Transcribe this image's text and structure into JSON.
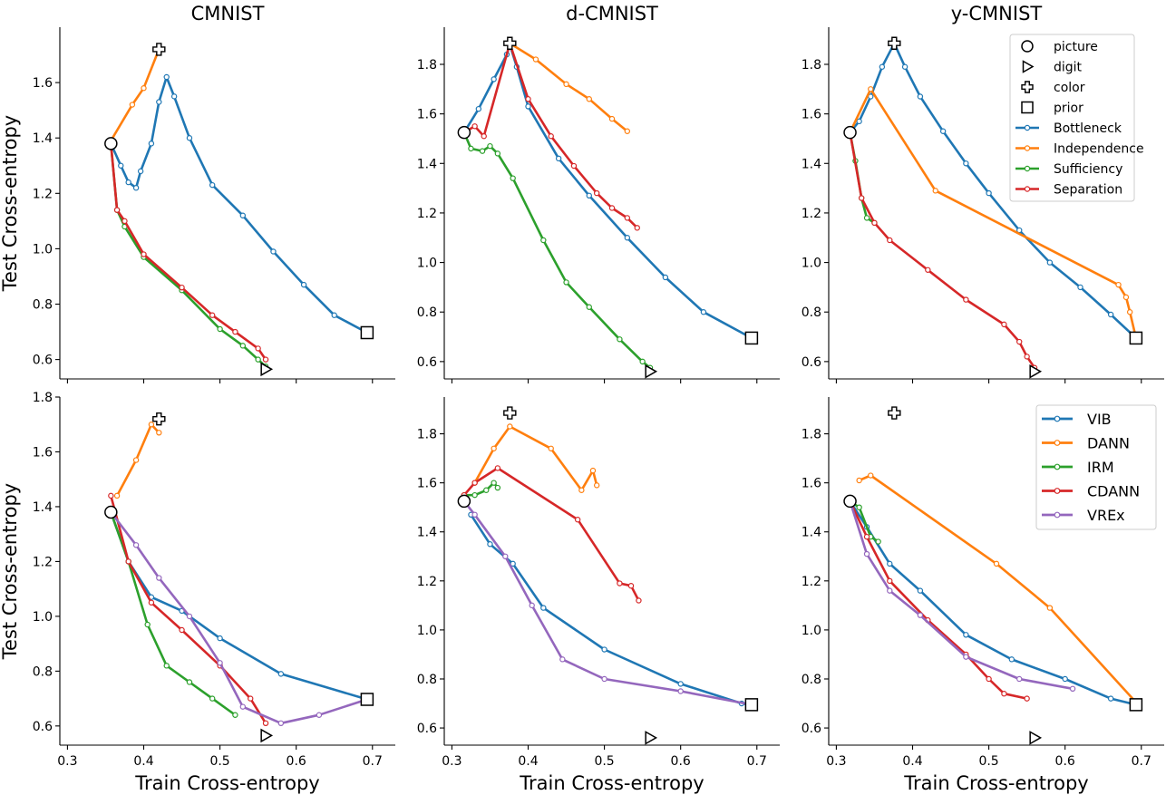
{
  "chart_data": [
    {
      "type": "line",
      "panel": "top-left",
      "title": "CMNIST",
      "ylabel": "Test Cross-entropy",
      "xlim": [
        0.29,
        0.73
      ],
      "ylim": [
        0.53,
        1.8
      ],
      "yticks": [
        "0.6",
        "0.8",
        "1.0",
        "1.2",
        "1.4",
        "1.6"
      ],
      "markers": {
        "picture": [
          0.357,
          1.38
        ],
        "digit": [
          0.56,
          0.565
        ],
        "color": [
          0.42,
          1.72
        ],
        "prior": [
          0.693,
          0.697
        ]
      },
      "series": [
        {
          "name": "Bottleneck",
          "color": "#1f77b4",
          "x": [
            0.357,
            0.37,
            0.38,
            0.39,
            0.396,
            0.41,
            0.42,
            0.43,
            0.44,
            0.46,
            0.49,
            0.53,
            0.57,
            0.61,
            0.65,
            0.693
          ],
          "y": [
            1.38,
            1.3,
            1.24,
            1.22,
            1.28,
            1.38,
            1.53,
            1.62,
            1.55,
            1.4,
            1.23,
            1.12,
            0.99,
            0.87,
            0.76,
            0.697
          ]
        },
        {
          "name": "Independence",
          "color": "#ff7f0e",
          "x": [
            0.357,
            0.385,
            0.4,
            0.42
          ],
          "y": [
            1.39,
            1.52,
            1.58,
            1.72
          ]
        },
        {
          "name": "Sufficiency",
          "color": "#2ca02c",
          "x": [
            0.357,
            0.365,
            0.375,
            0.4,
            0.45,
            0.5,
            0.53,
            0.55,
            0.56
          ],
          "y": [
            1.38,
            1.14,
            1.08,
            0.97,
            0.85,
            0.71,
            0.65,
            0.6,
            0.575
          ]
        },
        {
          "name": "Separation",
          "color": "#d62728",
          "x": [
            0.357,
            0.365,
            0.375,
            0.4,
            0.45,
            0.49,
            0.52,
            0.55,
            0.56
          ],
          "y": [
            1.38,
            1.14,
            1.1,
            0.98,
            0.86,
            0.76,
            0.7,
            0.64,
            0.6
          ]
        }
      ],
      "legend": {
        "position": "none"
      }
    },
    {
      "type": "line",
      "panel": "top-middle",
      "title": "d-CMNIST",
      "xlim": [
        0.29,
        0.73
      ],
      "ylim": [
        0.53,
        1.95
      ],
      "yticks": [
        "0.6",
        "0.8",
        "1.0",
        "1.2",
        "1.4",
        "1.6",
        "1.8"
      ],
      "markers": {
        "picture": [
          0.316,
          1.525
        ],
        "digit": [
          0.56,
          0.56
        ],
        "color": [
          0.376,
          1.885
        ],
        "prior": [
          0.693,
          0.695
        ]
      },
      "series": [
        {
          "name": "Bottleneck",
          "color": "#1f77b4",
          "x": [
            0.316,
            0.335,
            0.355,
            0.372,
            0.376,
            0.385,
            0.4,
            0.44,
            0.48,
            0.53,
            0.58,
            0.63,
            0.693
          ],
          "y": [
            1.525,
            1.62,
            1.74,
            1.84,
            1.88,
            1.79,
            1.63,
            1.42,
            1.27,
            1.1,
            0.94,
            0.8,
            0.695
          ]
        },
        {
          "name": "Independence",
          "color": "#ff7f0e",
          "x": [
            0.376,
            0.41,
            0.45,
            0.48,
            0.51,
            0.53
          ],
          "y": [
            1.885,
            1.82,
            1.72,
            1.66,
            1.58,
            1.53
          ]
        },
        {
          "name": "Sufficiency",
          "color": "#2ca02c",
          "x": [
            0.316,
            0.325,
            0.34,
            0.35,
            0.36,
            0.38,
            0.42,
            0.45,
            0.48,
            0.52,
            0.55,
            0.56
          ],
          "y": [
            1.525,
            1.46,
            1.45,
            1.47,
            1.44,
            1.34,
            1.09,
            0.92,
            0.82,
            0.69,
            0.6,
            0.575
          ]
        },
        {
          "name": "Separation",
          "color": "#d62728",
          "x": [
            0.316,
            0.33,
            0.342,
            0.376,
            0.4,
            0.43,
            0.46,
            0.49,
            0.51,
            0.53,
            0.543
          ],
          "y": [
            1.525,
            1.55,
            1.51,
            1.885,
            1.66,
            1.51,
            1.39,
            1.28,
            1.22,
            1.18,
            1.14
          ]
        }
      ],
      "legend": {
        "position": "none"
      }
    },
    {
      "type": "line",
      "panel": "top-right",
      "title": "y-CMNIST",
      "xlim": [
        0.29,
        0.73
      ],
      "ylim": [
        0.53,
        1.95
      ],
      "yticks": [
        "0.6",
        "0.8",
        "1.0",
        "1.2",
        "1.4",
        "1.6",
        "1.8"
      ],
      "markers": {
        "picture": [
          0.318,
          1.525
        ],
        "digit": [
          0.56,
          0.56
        ],
        "color": [
          0.376,
          1.885
        ],
        "prior": [
          0.693,
          0.695
        ]
      },
      "series": [
        {
          "name": "Bottleneck",
          "color": "#1f77b4",
          "x": [
            0.318,
            0.33,
            0.345,
            0.36,
            0.376,
            0.39,
            0.41,
            0.44,
            0.47,
            0.5,
            0.54,
            0.58,
            0.62,
            0.66,
            0.693
          ],
          "y": [
            1.525,
            1.57,
            1.67,
            1.79,
            1.885,
            1.79,
            1.67,
            1.53,
            1.4,
            1.28,
            1.13,
            1.0,
            0.9,
            0.79,
            0.695
          ]
        },
        {
          "name": "Independence",
          "color": "#ff7f0e",
          "x": [
            0.318,
            0.345,
            0.43,
            0.67,
            0.68,
            0.685,
            0.693
          ],
          "y": [
            1.525,
            1.7,
            1.29,
            0.91,
            0.86,
            0.8,
            0.695
          ]
        },
        {
          "name": "Sufficiency",
          "color": "#2ca02c",
          "x": [
            0.318,
            0.325,
            0.333,
            0.34,
            0.35
          ],
          "y": [
            1.525,
            1.41,
            1.26,
            1.18,
            1.16
          ]
        },
        {
          "name": "Separation",
          "color": "#d62728",
          "x": [
            0.318,
            0.333,
            0.35,
            0.37,
            0.42,
            0.47,
            0.52,
            0.54,
            0.55,
            0.56
          ],
          "y": [
            1.525,
            1.26,
            1.16,
            1.09,
            0.97,
            0.85,
            0.75,
            0.68,
            0.62,
            0.575
          ]
        }
      ],
      "legend": {
        "position": "top-right",
        "marker_entries": [
          {
            "label": "picture",
            "marker": "circle"
          },
          {
            "label": "digit",
            "marker": "triangle-right"
          },
          {
            "label": "color",
            "marker": "plus"
          },
          {
            "label": "prior",
            "marker": "square"
          }
        ],
        "line_entries": [
          {
            "label": "Bottleneck",
            "color": "#1f77b4"
          },
          {
            "label": "Independence",
            "color": "#ff7f0e"
          },
          {
            "label": "Sufficiency",
            "color": "#2ca02c"
          },
          {
            "label": "Separation",
            "color": "#d62728"
          }
        ]
      }
    },
    {
      "type": "line",
      "panel": "bottom-left",
      "xlabel": "Train Cross-entropy",
      "ylabel": "Test Cross-entropy",
      "xlim": [
        0.29,
        0.73
      ],
      "ylim": [
        0.53,
        1.8
      ],
      "yticks": [
        "0.6",
        "0.8",
        "1.0",
        "1.2",
        "1.4",
        "1.6",
        "1.8"
      ],
      "xticks": [
        "0.3",
        "0.4",
        "0.5",
        "0.6",
        "0.7"
      ],
      "markers": {
        "picture": [
          0.357,
          1.38
        ],
        "digit": [
          0.56,
          0.565
        ],
        "color": [
          0.42,
          1.72
        ],
        "prior": [
          0.693,
          0.697
        ]
      },
      "series": [
        {
          "name": "VIB",
          "color": "#1f77b4",
          "x": [
            0.357,
            0.38,
            0.41,
            0.45,
            0.5,
            0.58,
            0.693
          ],
          "y": [
            1.38,
            1.2,
            1.07,
            1.02,
            0.92,
            0.79,
            0.697
          ]
        },
        {
          "name": "DANN",
          "color": "#ff7f0e",
          "x": [
            0.365,
            0.39,
            0.41,
            0.42
          ],
          "y": [
            1.44,
            1.57,
            1.7,
            1.67
          ]
        },
        {
          "name": "IRM",
          "color": "#2ca02c",
          "x": [
            0.357,
            0.38,
            0.405,
            0.43,
            0.46,
            0.49,
            0.52
          ],
          "y": [
            1.38,
            1.2,
            0.97,
            0.82,
            0.76,
            0.7,
            0.64
          ]
        },
        {
          "name": "CDANN",
          "color": "#d62728",
          "x": [
            0.357,
            0.38,
            0.41,
            0.45,
            0.5,
            0.54,
            0.56
          ],
          "y": [
            1.44,
            1.2,
            1.05,
            0.95,
            0.82,
            0.7,
            0.61
          ]
        },
        {
          "name": "VREx",
          "color": "#9467bd",
          "x": [
            0.357,
            0.39,
            0.42,
            0.46,
            0.5,
            0.53,
            0.58,
            0.63,
            0.693
          ],
          "y": [
            1.38,
            1.26,
            1.14,
            1.0,
            0.83,
            0.67,
            0.61,
            0.64,
            0.697
          ]
        }
      ],
      "legend": {
        "position": "none"
      }
    },
    {
      "type": "line",
      "panel": "bottom-middle",
      "xlabel": "Train Cross-entropy",
      "xlim": [
        0.29,
        0.73
      ],
      "ylim": [
        0.53,
        1.95
      ],
      "yticks": [
        "0.6",
        "0.8",
        "1.0",
        "1.2",
        "1.4",
        "1.6",
        "1.8"
      ],
      "xticks": [
        "0.3",
        "0.4",
        "0.5",
        "0.6",
        "0.7"
      ],
      "markers": {
        "picture": [
          0.316,
          1.525
        ],
        "digit": [
          0.56,
          0.56
        ],
        "color": [
          0.376,
          1.885
        ],
        "prior": [
          0.693,
          0.695
        ]
      },
      "series": [
        {
          "name": "VIB",
          "color": "#1f77b4",
          "x": [
            0.325,
            0.35,
            0.38,
            0.42,
            0.5,
            0.6,
            0.68,
            0.693
          ],
          "y": [
            1.47,
            1.35,
            1.27,
            1.09,
            0.92,
            0.78,
            0.7,
            0.695
          ]
        },
        {
          "name": "DANN",
          "color": "#ff7f0e",
          "x": [
            0.33,
            0.355,
            0.376,
            0.43,
            0.47,
            0.485,
            0.49
          ],
          "y": [
            1.6,
            1.74,
            1.83,
            1.74,
            1.57,
            1.65,
            1.59
          ]
        },
        {
          "name": "IRM",
          "color": "#2ca02c",
          "x": [
            0.316,
            0.33,
            0.345,
            0.355,
            0.36
          ],
          "y": [
            1.55,
            1.55,
            1.57,
            1.6,
            1.58
          ]
        },
        {
          "name": "CDANN",
          "color": "#d62728",
          "x": [
            0.316,
            0.33,
            0.36,
            0.465,
            0.52,
            0.535,
            0.545
          ],
          "y": [
            1.55,
            1.6,
            1.66,
            1.45,
            1.19,
            1.18,
            1.12
          ]
        },
        {
          "name": "VREx",
          "color": "#9467bd",
          "x": [
            0.316,
            0.33,
            0.37,
            0.405,
            0.445,
            0.5,
            0.6,
            0.693
          ],
          "y": [
            1.525,
            1.47,
            1.3,
            1.1,
            0.88,
            0.8,
            0.75,
            0.695
          ]
        }
      ],
      "legend": {
        "position": "none"
      }
    },
    {
      "type": "line",
      "panel": "bottom-right",
      "xlabel": "Train Cross-entropy",
      "xlim": [
        0.29,
        0.73
      ],
      "ylim": [
        0.53,
        1.95
      ],
      "yticks": [
        "0.6",
        "0.8",
        "1.0",
        "1.2",
        "1.4",
        "1.6",
        "1.8"
      ],
      "xticks": [
        "0.3",
        "0.4",
        "0.5",
        "0.6",
        "0.7"
      ],
      "markers": {
        "picture": [
          0.318,
          1.525
        ],
        "digit": [
          0.56,
          0.56
        ],
        "color": [
          0.376,
          1.885
        ],
        "prior": [
          0.693,
          0.695
        ]
      },
      "series": [
        {
          "name": "VIB",
          "color": "#1f77b4",
          "x": [
            0.318,
            0.34,
            0.37,
            0.41,
            0.47,
            0.53,
            0.6,
            0.66,
            0.693
          ],
          "y": [
            1.525,
            1.42,
            1.27,
            1.16,
            0.98,
            0.88,
            0.8,
            0.72,
            0.695
          ]
        },
        {
          "name": "DANN",
          "color": "#ff7f0e",
          "x": [
            0.33,
            0.345,
            0.51,
            0.58,
            0.693
          ],
          "y": [
            1.61,
            1.63,
            1.27,
            1.09,
            0.705
          ]
        },
        {
          "name": "IRM",
          "color": "#2ca02c",
          "x": [
            0.318,
            0.33,
            0.345,
            0.355
          ],
          "y": [
            1.525,
            1.5,
            1.38,
            1.36
          ]
        },
        {
          "name": "CDANN",
          "color": "#d62728",
          "x": [
            0.318,
            0.34,
            0.37,
            0.42,
            0.47,
            0.5,
            0.52,
            0.55
          ],
          "y": [
            1.525,
            1.38,
            1.2,
            1.04,
            0.9,
            0.8,
            0.74,
            0.72
          ]
        },
        {
          "name": "VREx",
          "color": "#9467bd",
          "x": [
            0.318,
            0.34,
            0.37,
            0.41,
            0.47,
            0.54,
            0.61
          ],
          "y": [
            1.525,
            1.31,
            1.16,
            1.06,
            0.89,
            0.8,
            0.76
          ]
        }
      ],
      "legend": {
        "position": "top-right",
        "line_entries": [
          {
            "label": "VIB",
            "color": "#1f77b4"
          },
          {
            "label": "DANN",
            "color": "#ff7f0e"
          },
          {
            "label": "IRM",
            "color": "#2ca02c"
          },
          {
            "label": "CDANN",
            "color": "#d62728"
          },
          {
            "label": "VREx",
            "color": "#9467bd"
          }
        ]
      }
    }
  ]
}
